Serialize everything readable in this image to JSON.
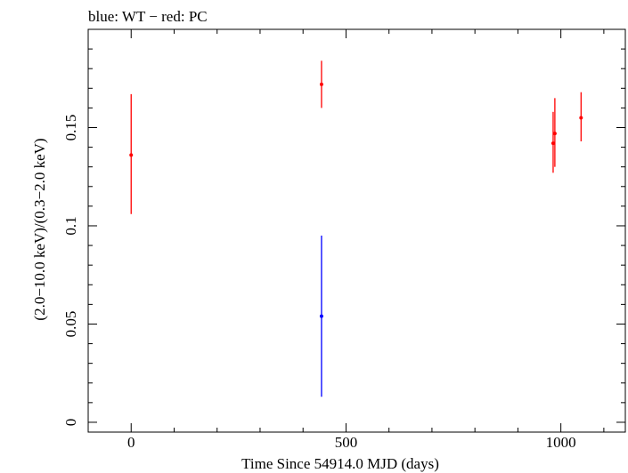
{
  "chart_data": {
    "type": "scatter",
    "title": "blue: WT − red: PC",
    "xlabel": "Time Since 54914.0 MJD (days)",
    "ylabel": "(2.0−10.0 keV)/(0.3−2.0 keV)",
    "xlim": [
      -100,
      1150
    ],
    "ylim": [
      -0.005,
      0.2
    ],
    "x_ticks": [
      0,
      500,
      1000
    ],
    "x_tick_labels": [
      "0",
      "500",
      "1000"
    ],
    "y_ticks": [
      0,
      0.05,
      0.1,
      0.15
    ],
    "y_tick_labels": [
      "0",
      "0.05",
      "0.1",
      "0.15"
    ],
    "grid": false,
    "series": [
      {
        "name": "WT",
        "color": "#0000ff",
        "points": [
          {
            "x": 443,
            "y": 0.054,
            "ylo": 0.013,
            "yhi": 0.095
          }
        ]
      },
      {
        "name": "PC",
        "color": "#ff0000",
        "points": [
          {
            "x": 0,
            "y": 0.136,
            "ylo": 0.106,
            "yhi": 0.167
          },
          {
            "x": 443,
            "y": 0.172,
            "ylo": 0.16,
            "yhi": 0.184
          },
          {
            "x": 982,
            "y": 0.142,
            "ylo": 0.127,
            "yhi": 0.158
          },
          {
            "x": 986,
            "y": 0.147,
            "ylo": 0.13,
            "yhi": 0.165
          },
          {
            "x": 1047,
            "y": 0.155,
            "ylo": 0.143,
            "yhi": 0.168
          }
        ]
      }
    ]
  }
}
